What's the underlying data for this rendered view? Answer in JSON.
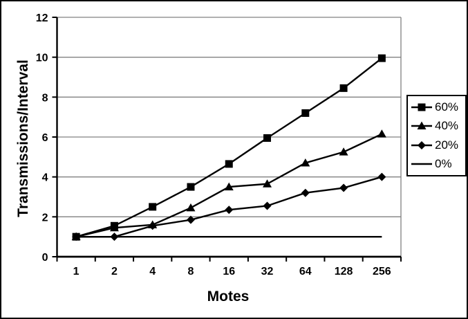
{
  "figure": {
    "background_color": "#ffffff",
    "border_color": "#000000",
    "series_color": "#000000",
    "gridline_color": "#808080"
  },
  "chart_data": {
    "type": "line",
    "title": "",
    "xlabel": "Motes",
    "ylabel": "Transmissions/Interval",
    "categories": [
      "1",
      "2",
      "4",
      "8",
      "16",
      "32",
      "64",
      "128",
      "256"
    ],
    "series": [
      {
        "name": "60%",
        "marker": "square",
        "values": [
          1.0,
          1.55,
          2.5,
          3.5,
          4.65,
          5.95,
          7.2,
          8.45,
          9.95
        ]
      },
      {
        "name": "40%",
        "marker": "triangle",
        "values": [
          1.0,
          1.45,
          1.6,
          2.45,
          3.5,
          3.65,
          4.7,
          5.25,
          6.15
        ]
      },
      {
        "name": "20%",
        "marker": "diamond",
        "values": [
          1.0,
          1.0,
          1.55,
          1.85,
          2.35,
          2.55,
          3.2,
          3.45,
          4.0
        ]
      },
      {
        "name": "0%",
        "marker": "none",
        "values": [
          1.0,
          1.0,
          1.0,
          1.0,
          1.0,
          1.0,
          1.0,
          1.0,
          1.0
        ]
      }
    ],
    "ylim": [
      0,
      12
    ],
    "yticks": [
      0,
      2,
      4,
      6,
      8,
      10,
      12
    ],
    "grid": true,
    "legend_position": "right",
    "legend_entries": [
      "60%",
      "40%",
      "20%",
      "0%"
    ]
  }
}
